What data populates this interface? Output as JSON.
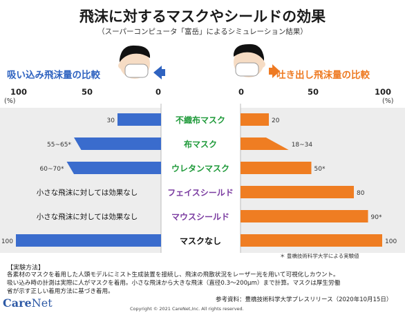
{
  "header": {
    "title": "飛沫に対するマスクやシールドの効果",
    "subtitle": "（スーパーコンピュータ「富岳」によるシミュレーション結果）"
  },
  "colors": {
    "inhale": "#3a6ccd",
    "exhale": "#ef7d22",
    "mask_label": "#1f9a3a",
    "shield_label": "#7a3ba0"
  },
  "chart_data": [
    {
      "type": "bar",
      "title": "吸い込み飛沫量の比較",
      "direction": "right-to-left",
      "xlim": [
        0,
        100
      ],
      "ticks": [
        "100",
        "50",
        "0"
      ],
      "unit": "(%)",
      "categories": [
        "不織布マスク",
        "布マスク",
        "ウレタンマスク",
        "フェイスシールド",
        "マウスシールド",
        "マスクなし"
      ],
      "values": [
        30,
        60,
        65,
        null,
        null,
        100
      ],
      "labels": [
        "30",
        "55~65*",
        "60~70*",
        "小さな飛沫に対しては効果なし",
        "小さな飛沫に対しては効果なし",
        "100"
      ]
    },
    {
      "type": "bar",
      "title": "吐き出し飛沫量の比較",
      "direction": "left-to-right",
      "xlim": [
        0,
        100
      ],
      "ticks": [
        "0",
        "50",
        "100"
      ],
      "unit": "(%)",
      "categories": [
        "不織布マスク",
        "布マスク",
        "ウレタンマスク",
        "フェイスシールド",
        "マウスシールド",
        "マスクなし"
      ],
      "values": [
        20,
        34,
        50,
        80,
        90,
        100
      ],
      "labels": [
        "20",
        "18~34",
        "50*",
        "80",
        "90*",
        "100"
      ]
    }
  ],
  "footnote": "＊ 豊橋技術科学大学による実験値",
  "notes": {
    "heading": "【実験方法】",
    "lines": [
      "各素材のマスクを着用した人頭モデルにミスト生成装置を接続し、飛沫の飛散状況をレーザー光を用いて可視化しカウント。",
      "吸い込み時の計測は実際に人がマスクを着用。小さな飛沫から大きな飛沫（直径0.3〜200μm）まで計算。マスクは厚生労働",
      "省が示す正しい着用方法に基づき着用。"
    ]
  },
  "reference": "参考資料：豊橋技術科学大学プレスリリース（2020年10月15日）",
  "copyright": "Copyright © 2021 CareNet,Inc. All rights reserved.",
  "logo": {
    "part1": "Care",
    "part2": "Net"
  }
}
